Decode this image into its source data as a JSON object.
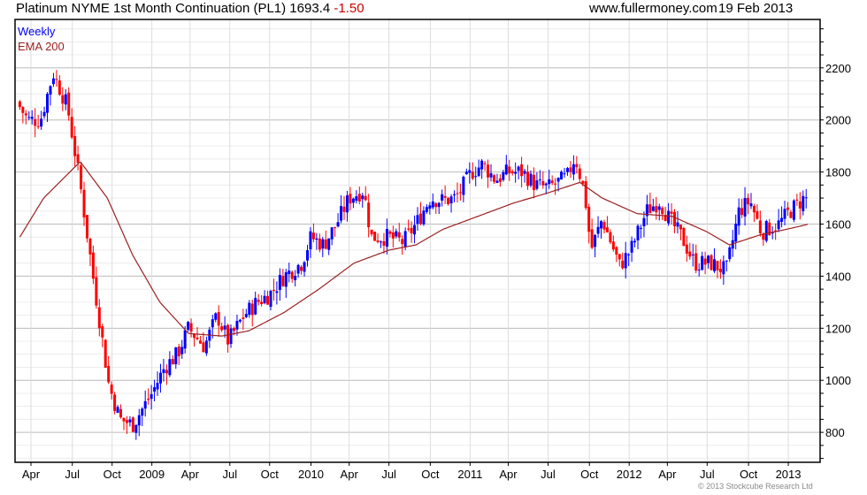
{
  "header": {
    "title": "Platinum NYME 1st Month Continuation (PL1) 1693.4",
    "change": "-1.50",
    "site": "www.fullermoney.com",
    "date": "19 Feb 2013"
  },
  "copyright": "© 2013 Stockcube Research Ltd",
  "colors": {
    "up": "#0000ff",
    "down": "#ff0000",
    "ema": "#9b2020",
    "grid": "#dddddd",
    "grid_major": "#bbbbbb"
  },
  "chart_data": {
    "type": "candlestick",
    "title": "Platinum NYME 1st Month Continuation (PL1)",
    "legend": [
      {
        "label": "Weekly",
        "color": "#0000ff"
      },
      {
        "label": "EMA 200",
        "color": "#9b2020"
      }
    ],
    "legend_placement": "top-left",
    "xlim": [
      2008.14,
      2013.2
    ],
    "ylim": [
      685,
      2386
    ],
    "y_ticks": [
      800,
      1000,
      1200,
      1400,
      1600,
      1800,
      2000,
      2200
    ],
    "x_ticks": [
      {
        "t": 2008.24,
        "label": "Apr"
      },
      {
        "t": 2008.5,
        "label": "Jul"
      },
      {
        "t": 2008.75,
        "label": "Oct"
      },
      {
        "t": 2009.0,
        "label": "2009"
      },
      {
        "t": 2009.24,
        "label": "Apr"
      },
      {
        "t": 2009.49,
        "label": "Jul"
      },
      {
        "t": 2009.74,
        "label": "Oct"
      },
      {
        "t": 2010.0,
        "label": "2010"
      },
      {
        "t": 2010.24,
        "label": "Apr"
      },
      {
        "t": 2010.49,
        "label": "Jul"
      },
      {
        "t": 2010.75,
        "label": "Oct"
      },
      {
        "t": 2011.0,
        "label": "2011"
      },
      {
        "t": 2011.24,
        "label": "Apr"
      },
      {
        "t": 2011.49,
        "label": "Jul"
      },
      {
        "t": 2011.75,
        "label": "Oct"
      },
      {
        "t": 2012.0,
        "label": "2012"
      },
      {
        "t": 2012.24,
        "label": "Apr"
      },
      {
        "t": 2012.49,
        "label": "Jul"
      },
      {
        "t": 2012.75,
        "label": "Oct"
      },
      {
        "t": 2013.0,
        "label": "2013"
      }
    ],
    "close_path": [
      [
        2008.17,
        2050
      ],
      [
        2008.22,
        2000
      ],
      [
        2008.3,
        2000
      ],
      [
        2008.38,
        2180
      ],
      [
        2008.47,
        2050
      ],
      [
        2008.55,
        1750
      ],
      [
        2008.63,
        1400
      ],
      [
        2008.69,
        1150
      ],
      [
        2008.73,
        980
      ],
      [
        2008.8,
        850
      ],
      [
        2008.88,
        830
      ],
      [
        2009.0,
        950
      ],
      [
        2009.08,
        1050
      ],
      [
        2009.16,
        1100
      ],
      [
        2009.23,
        1200
      ],
      [
        2009.33,
        1130
      ],
      [
        2009.41,
        1250
      ],
      [
        2009.48,
        1150
      ],
      [
        2009.58,
        1250
      ],
      [
        2009.66,
        1300
      ],
      [
        2009.74,
        1330
      ],
      [
        2009.83,
        1400
      ],
      [
        2009.94,
        1450
      ],
      [
        2010.0,
        1550
      ],
      [
        2010.08,
        1520
      ],
      [
        2010.16,
        1600
      ],
      [
        2010.24,
        1700
      ],
      [
        2010.33,
        1730
      ],
      [
        2010.38,
        1550
      ],
      [
        2010.49,
        1550
      ],
      [
        2010.58,
        1530
      ],
      [
        2010.66,
        1600
      ],
      [
        2010.75,
        1700
      ],
      [
        2010.83,
        1690
      ],
      [
        2010.91,
        1700
      ],
      [
        2011.01,
        1800
      ],
      [
        2011.08,
        1830
      ],
      [
        2011.16,
        1770
      ],
      [
        2011.24,
        1800
      ],
      [
        2011.33,
        1800
      ],
      [
        2011.41,
        1750
      ],
      [
        2011.49,
        1740
      ],
      [
        2011.61,
        1780
      ],
      [
        2011.66,
        1860
      ],
      [
        2011.72,
        1720
      ],
      [
        2011.76,
        1500
      ],
      [
        2011.83,
        1620
      ],
      [
        2011.94,
        1440
      ],
      [
        2012.01,
        1500
      ],
      [
        2012.11,
        1650
      ],
      [
        2012.19,
        1690
      ],
      [
        2012.25,
        1620
      ],
      [
        2012.33,
        1550
      ],
      [
        2012.41,
        1450
      ],
      [
        2012.51,
        1450
      ],
      [
        2012.61,
        1420
      ],
      [
        2012.69,
        1650
      ],
      [
        2012.76,
        1690
      ],
      [
        2012.83,
        1570
      ],
      [
        2012.94,
        1600
      ],
      [
        2013.01,
        1650
      ],
      [
        2013.1,
        1700
      ],
      [
        2013.13,
        1693.4
      ]
    ],
    "ema_path": [
      [
        2008.17,
        1550
      ],
      [
        2008.32,
        1700
      ],
      [
        2008.55,
        1840
      ],
      [
        2008.72,
        1700
      ],
      [
        2008.88,
        1480
      ],
      [
        2009.05,
        1300
      ],
      [
        2009.23,
        1180
      ],
      [
        2009.44,
        1170
      ],
      [
        2009.61,
        1190
      ],
      [
        2009.83,
        1260
      ],
      [
        2010.05,
        1350
      ],
      [
        2010.27,
        1450
      ],
      [
        2010.49,
        1500
      ],
      [
        2010.66,
        1520
      ],
      [
        2010.83,
        1580
      ],
      [
        2011.05,
        1630
      ],
      [
        2011.27,
        1680
      ],
      [
        2011.49,
        1720
      ],
      [
        2011.69,
        1760
      ],
      [
        2011.83,
        1700
      ],
      [
        2012.05,
        1640
      ],
      [
        2012.27,
        1630
      ],
      [
        2012.49,
        1570
      ],
      [
        2012.63,
        1520
      ],
      [
        2012.83,
        1560
      ],
      [
        2012.99,
        1580
      ],
      [
        2013.13,
        1600
      ]
    ]
  }
}
